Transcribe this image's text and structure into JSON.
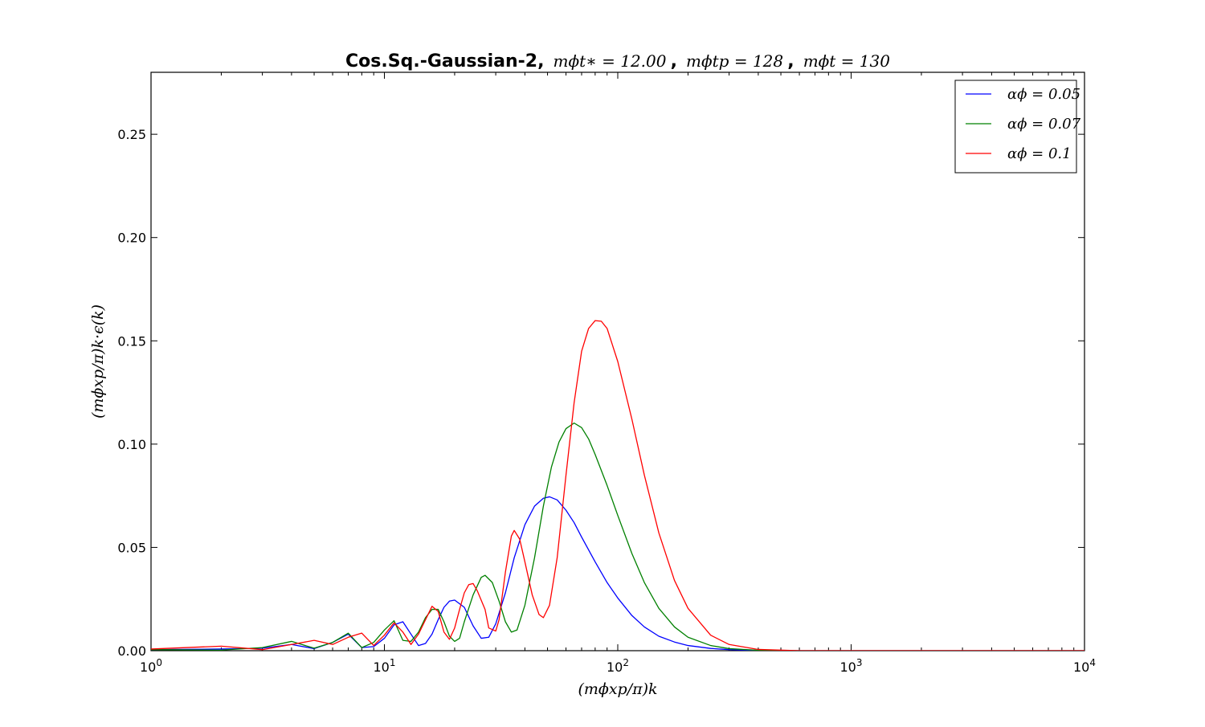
{
  "chart_data": {
    "type": "line",
    "title": {
      "bold_prefix": "Cos.Sq.-Gaussian-2,",
      "math_1": "mϕt∗ = 12.00",
      "sep_1": ",",
      "math_2": "mϕtp = 128",
      "sep_2": ",",
      "math_3": "mϕt = 130"
    },
    "xlabel": "(mϕxp/π)k",
    "ylabel": "(mϕxp/π)k·ϵ(k)",
    "xscale": "log",
    "xlim": [
      1,
      10000
    ],
    "ylim": [
      0,
      0.28
    ],
    "x_ticks": [
      {
        "value": 1,
        "base": "10",
        "exp": "0"
      },
      {
        "value": 10,
        "base": "10",
        "exp": "1"
      },
      {
        "value": 100,
        "base": "10",
        "exp": "2"
      },
      {
        "value": 1000,
        "base": "10",
        "exp": "3"
      },
      {
        "value": 10000,
        "base": "10",
        "exp": "4"
      }
    ],
    "y_ticks": [
      {
        "value": 0.0,
        "label": "0.00"
      },
      {
        "value": 0.05,
        "label": "0.05"
      },
      {
        "value": 0.1,
        "label": "0.10"
      },
      {
        "value": 0.15,
        "label": "0.15"
      },
      {
        "value": 0.2,
        "label": "0.20"
      },
      {
        "value": 0.25,
        "label": "0.25"
      }
    ],
    "legend_position": "top-right",
    "grid": false,
    "series": [
      {
        "name": "αϕ = 0.05",
        "color": "#0000ff",
        "points": [
          [
            1,
            0.0005
          ],
          [
            2,
            0.0008
          ],
          [
            3,
            0.0012
          ],
          [
            4,
            0.003
          ],
          [
            5,
            0.001
          ],
          [
            6,
            0.004
          ],
          [
            7,
            0.008
          ],
          [
            8,
            0.0015
          ],
          [
            9,
            0.002
          ],
          [
            10,
            0.006
          ],
          [
            11,
            0.0125
          ],
          [
            12,
            0.014
          ],
          [
            13,
            0.008
          ],
          [
            14,
            0.0025
          ],
          [
            15,
            0.0035
          ],
          [
            16,
            0.008
          ],
          [
            17,
            0.015
          ],
          [
            18,
            0.021
          ],
          [
            19,
            0.024
          ],
          [
            20,
            0.0245
          ],
          [
            22,
            0.021
          ],
          [
            24,
            0.012
          ],
          [
            26,
            0.006
          ],
          [
            28,
            0.0065
          ],
          [
            30,
            0.013
          ],
          [
            33,
            0.028
          ],
          [
            36,
            0.045
          ],
          [
            40,
            0.061
          ],
          [
            44,
            0.07
          ],
          [
            48,
            0.0738
          ],
          [
            51,
            0.0745
          ],
          [
            55,
            0.073
          ],
          [
            60,
            0.068
          ],
          [
            65,
            0.062
          ],
          [
            70,
            0.055
          ],
          [
            80,
            0.043
          ],
          [
            90,
            0.033
          ],
          [
            100,
            0.0255
          ],
          [
            115,
            0.017
          ],
          [
            130,
            0.0115
          ],
          [
            150,
            0.007
          ],
          [
            175,
            0.0042
          ],
          [
            200,
            0.0025
          ],
          [
            250,
            0.0011
          ],
          [
            300,
            0.0005
          ],
          [
            400,
            0.0001
          ],
          [
            600,
            0.0
          ],
          [
            1000,
            0.0
          ],
          [
            3000,
            0.0
          ],
          [
            10000,
            0.0
          ]
        ]
      },
      {
        "name": "αϕ = 0.07",
        "color": "#008000",
        "points": [
          [
            1,
            0.0005
          ],
          [
            2,
            0.0003
          ],
          [
            3,
            0.0015
          ],
          [
            4,
            0.0045
          ],
          [
            5,
            0.0012
          ],
          [
            6,
            0.004
          ],
          [
            7,
            0.0085
          ],
          [
            8,
            0.0015
          ],
          [
            9,
            0.004
          ],
          [
            10,
            0.01
          ],
          [
            11,
            0.0145
          ],
          [
            12,
            0.005
          ],
          [
            13,
            0.0045
          ],
          [
            14,
            0.009
          ],
          [
            15,
            0.016
          ],
          [
            16,
            0.02
          ],
          [
            17,
            0.02
          ],
          [
            18,
            0.014
          ],
          [
            19,
            0.007
          ],
          [
            20,
            0.0045
          ],
          [
            21,
            0.006
          ],
          [
            22,
            0.014
          ],
          [
            24,
            0.027
          ],
          [
            26,
            0.0355
          ],
          [
            27,
            0.0365
          ],
          [
            29,
            0.033
          ],
          [
            31,
            0.024
          ],
          [
            33,
            0.014
          ],
          [
            35,
            0.009
          ],
          [
            37,
            0.01
          ],
          [
            40,
            0.022
          ],
          [
            44,
            0.045
          ],
          [
            48,
            0.07
          ],
          [
            52,
            0.089
          ],
          [
            56,
            0.101
          ],
          [
            60,
            0.1075
          ],
          [
            65,
            0.1102
          ],
          [
            70,
            0.108
          ],
          [
            75,
            0.1025
          ],
          [
            80,
            0.095
          ],
          [
            90,
            0.08
          ],
          [
            100,
            0.0655
          ],
          [
            115,
            0.047
          ],
          [
            130,
            0.033
          ],
          [
            150,
            0.0205
          ],
          [
            175,
            0.0115
          ],
          [
            200,
            0.0065
          ],
          [
            250,
            0.0025
          ],
          [
            300,
            0.001
          ],
          [
            400,
            0.0002
          ],
          [
            600,
            0.0
          ],
          [
            1000,
            0.0
          ],
          [
            3000,
            0.0
          ],
          [
            10000,
            0.0
          ]
        ]
      },
      {
        "name": "αϕ = 0.1",
        "color": "#ff0000",
        "points": [
          [
            1,
            0.0008
          ],
          [
            2,
            0.0022
          ],
          [
            3,
            0.0005
          ],
          [
            4,
            0.003
          ],
          [
            5,
            0.005
          ],
          [
            6,
            0.003
          ],
          [
            7,
            0.0065
          ],
          [
            8,
            0.0085
          ],
          [
            9,
            0.0025
          ],
          [
            10,
            0.0075
          ],
          [
            11,
            0.0135
          ],
          [
            12,
            0.009
          ],
          [
            13,
            0.003
          ],
          [
            14,
            0.008
          ],
          [
            15,
            0.015
          ],
          [
            16,
            0.0215
          ],
          [
            17,
            0.019
          ],
          [
            18,
            0.009
          ],
          [
            19,
            0.0055
          ],
          [
            20,
            0.011
          ],
          [
            21,
            0.02
          ],
          [
            22,
            0.028
          ],
          [
            23,
            0.032
          ],
          [
            24,
            0.0325
          ],
          [
            25,
            0.029
          ],
          [
            27,
            0.02
          ],
          [
            28,
            0.011
          ],
          [
            30,
            0.0095
          ],
          [
            31,
            0.015
          ],
          [
            33,
            0.038
          ],
          [
            35,
            0.0555
          ],
          [
            36,
            0.0582
          ],
          [
            38,
            0.054
          ],
          [
            40,
            0.043
          ],
          [
            43,
            0.027
          ],
          [
            46,
            0.0175
          ],
          [
            48,
            0.016
          ],
          [
            51,
            0.022
          ],
          [
            55,
            0.045
          ],
          [
            60,
            0.085
          ],
          [
            65,
            0.12
          ],
          [
            70,
            0.145
          ],
          [
            75,
            0.156
          ],
          [
            80,
            0.1598
          ],
          [
            85,
            0.1595
          ],
          [
            90,
            0.156
          ],
          [
            100,
            0.14
          ],
          [
            115,
            0.112
          ],
          [
            130,
            0.085
          ],
          [
            150,
            0.057
          ],
          [
            175,
            0.034
          ],
          [
            200,
            0.0205
          ],
          [
            250,
            0.0075
          ],
          [
            300,
            0.003
          ],
          [
            400,
            0.0006
          ],
          [
            600,
            0.0
          ],
          [
            1000,
            0.0
          ],
          [
            3000,
            0.0
          ],
          [
            10000,
            0.0
          ]
        ]
      }
    ]
  }
}
